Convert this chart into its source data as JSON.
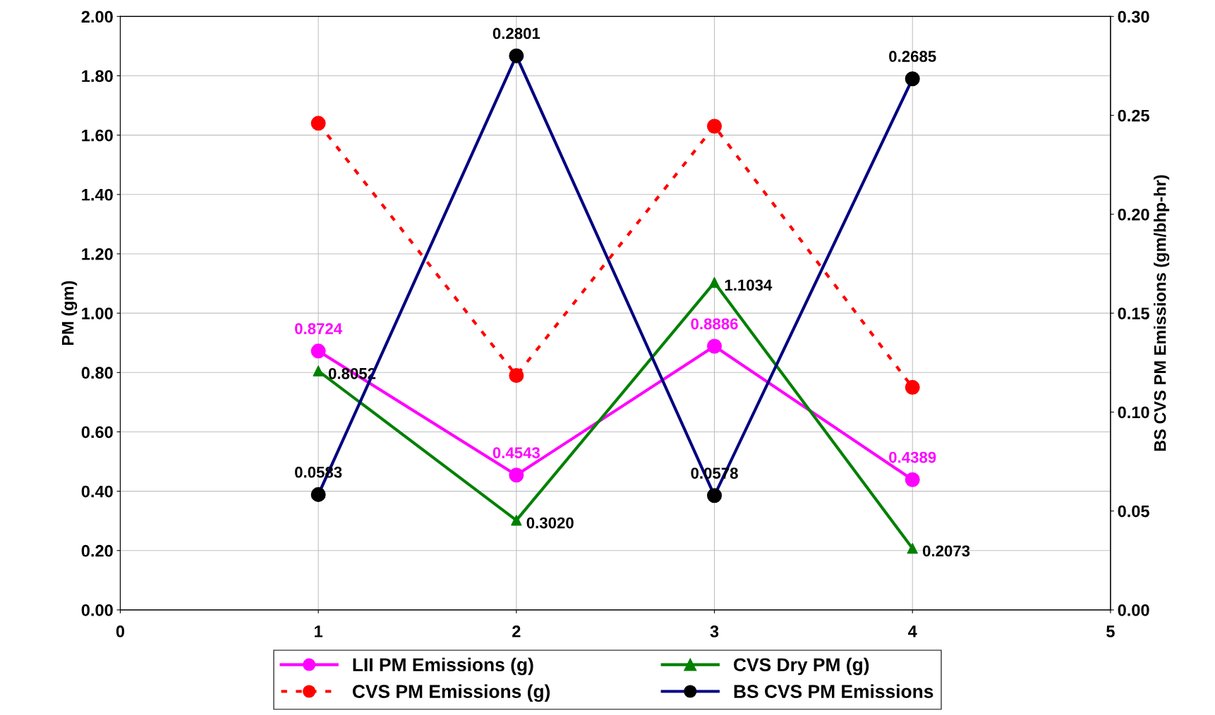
{
  "chart_data": {
    "type": "line",
    "ylabel": "PM (gm)",
    "y2label": "BS CVS PM Emissions (gm/bhp-hr)",
    "x": [
      1,
      2,
      3,
      4
    ],
    "xlim": [
      0,
      5
    ],
    "xticks": [
      0,
      1,
      2,
      3,
      4,
      5
    ],
    "ylim": [
      0,
      2
    ],
    "yticks": [
      {
        "value": 0,
        "label": "0.00"
      },
      {
        "value": 0.2,
        "label": "0.20"
      },
      {
        "value": 0.4,
        "label": "0.40"
      },
      {
        "value": 0.6,
        "label": "0.60"
      },
      {
        "value": 0.8,
        "label": "0.80"
      },
      {
        "value": 1.0,
        "label": "1.00"
      },
      {
        "value": 1.2,
        "label": "1.20"
      },
      {
        "value": 1.4,
        "label": "1.40"
      },
      {
        "value": 1.6,
        "label": "1.60"
      },
      {
        "value": 1.8,
        "label": "1.80"
      },
      {
        "value": 2.0,
        "label": "2.00"
      }
    ],
    "y2lim": [
      0,
      0.3
    ],
    "y2ticks": [
      {
        "value": 0,
        "label": "0.00"
      },
      {
        "value": 0.05,
        "label": "0.05"
      },
      {
        "value": 0.1,
        "label": "0.10"
      },
      {
        "value": 0.15,
        "label": "0.15"
      },
      {
        "value": 0.2,
        "label": "0.20"
      },
      {
        "value": 0.25,
        "label": "0.25"
      },
      {
        "value": 0.3,
        "label": "0.30"
      }
    ],
    "grid": true,
    "legend": "bottom",
    "series": [
      {
        "name": "LII PM Emissions (g)",
        "color": "#ff00ff",
        "values": [
          0.8724,
          0.4543,
          0.8886,
          0.4389
        ],
        "marker": "circle",
        "line_style": "solid",
        "value_labels": [
          "0.8724",
          "0.4543",
          "0.8886",
          "0.4389"
        ]
      },
      {
        "name": "CVS PM Emissions (g)",
        "color": "#ff0000",
        "values": [
          1.64,
          0.79,
          1.63,
          0.75
        ],
        "marker": "circle",
        "line_style": "dotted"
      },
      {
        "name": "CVS Dry PM (g)",
        "color": "#008000",
        "values": [
          0.8052,
          0.302,
          1.1034,
          0.2073
        ],
        "marker": "triangle",
        "line_style": "solid",
        "value_labels": [
          "0.8052",
          "0.3020",
          "1.1034",
          "0.2073"
        ]
      },
      {
        "name": "BS CVS PM Emissions",
        "color": "#000080",
        "colors": [
          "#000000",
          "#000000",
          "#000000",
          "#000000"
        ],
        "values": [
          0.0583,
          0.2801,
          0.0578,
          0.2685
        ],
        "marker": "circle",
        "line_style": "solid",
        "axis": "y2",
        "value_labels": [
          "0.0583",
          "0.2801",
          "0.0578",
          "0.2685"
        ]
      }
    ]
  }
}
